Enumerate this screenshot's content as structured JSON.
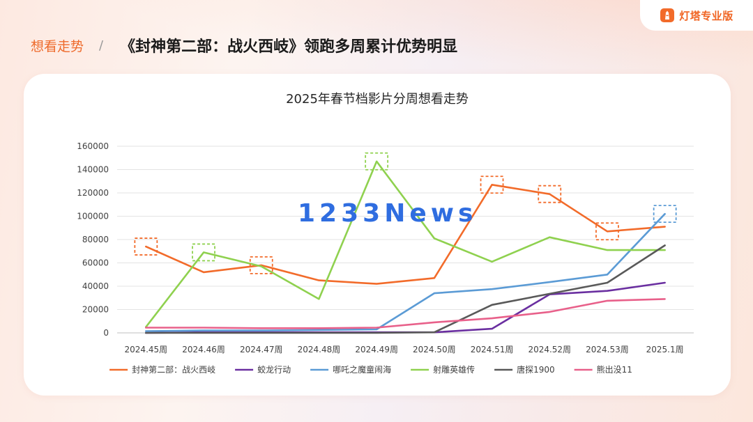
{
  "brand": {
    "name": "灯塔专业版",
    "icon": "lighthouse-icon"
  },
  "header": {
    "crumb": "想看走势",
    "separator": "/",
    "title": "《封神第二部：战火西岐》领跑多周累计优势明显"
  },
  "watermark": "1233News",
  "chart_data": {
    "type": "line",
    "title": "2025年春节档影片分周想看走势",
    "categories": [
      "2024.45周",
      "2024.46周",
      "2024.47周",
      "2024.48周",
      "2024.49周",
      "2024.50周",
      "2024.51周",
      "2024.52周",
      "2024.53周",
      "2025.1周"
    ],
    "ylim": [
      0,
      160000
    ],
    "yticks": [
      0,
      20000,
      40000,
      60000,
      80000,
      100000,
      120000,
      140000,
      160000
    ],
    "grid": true,
    "legend_position": "bottom",
    "series": [
      {
        "name": "封神第二部：战火西岐",
        "color": "#f26b2a",
        "values": [
          74000,
          52000,
          58000,
          45000,
          42000,
          47000,
          127000,
          119000,
          87000,
          91000
        ]
      },
      {
        "name": "蛟龙行动",
        "color": "#6a2fa0",
        "values": [
          0,
          500,
          500,
          500,
          500,
          500,
          3500,
          33000,
          36000,
          43000
        ]
      },
      {
        "name": "哪吒之魔童闹海",
        "color": "#5b9bd5",
        "values": [
          1500,
          2000,
          2000,
          2500,
          3000,
          34000,
          37500,
          43500,
          50000,
          102000
        ]
      },
      {
        "name": "射雕英雄传",
        "color": "#8fd14f",
        "values": [
          5000,
          69000,
          57000,
          29000,
          147000,
          81000,
          61000,
          82000,
          71000,
          71000
        ]
      },
      {
        "name": "唐探1900",
        "color": "#595959",
        "values": [
          0,
          0,
          0,
          0,
          0,
          500,
          24000,
          33500,
          43000,
          75000
        ]
      },
      {
        "name": "熊出没11",
        "color": "#e8608a",
        "values": [
          4500,
          4500,
          4000,
          4000,
          4500,
          9000,
          12500,
          18000,
          27500,
          29000
        ]
      }
    ],
    "highlights": [
      {
        "series": "封神第二部：战火西岐",
        "category": "2024.45周",
        "color": "#f26b2a"
      },
      {
        "series": "封神第二部：战火西岐",
        "category": "2024.47周",
        "color": "#f26b2a"
      },
      {
        "series": "封神第二部：战火西岐",
        "category": "2024.51周",
        "color": "#f26b2a"
      },
      {
        "series": "封神第二部：战火西岐",
        "category": "2024.52周",
        "color": "#f26b2a"
      },
      {
        "series": "封神第二部：战火西岐",
        "category": "2024.53周",
        "color": "#f26b2a"
      },
      {
        "series": "射雕英雄传",
        "category": "2024.46周",
        "color": "#8fd14f"
      },
      {
        "series": "射雕英雄传",
        "category": "2024.49周",
        "color": "#8fd14f"
      },
      {
        "series": "哪吒之魔童闹海",
        "category": "2025.1周",
        "color": "#5b9bd5"
      }
    ]
  }
}
